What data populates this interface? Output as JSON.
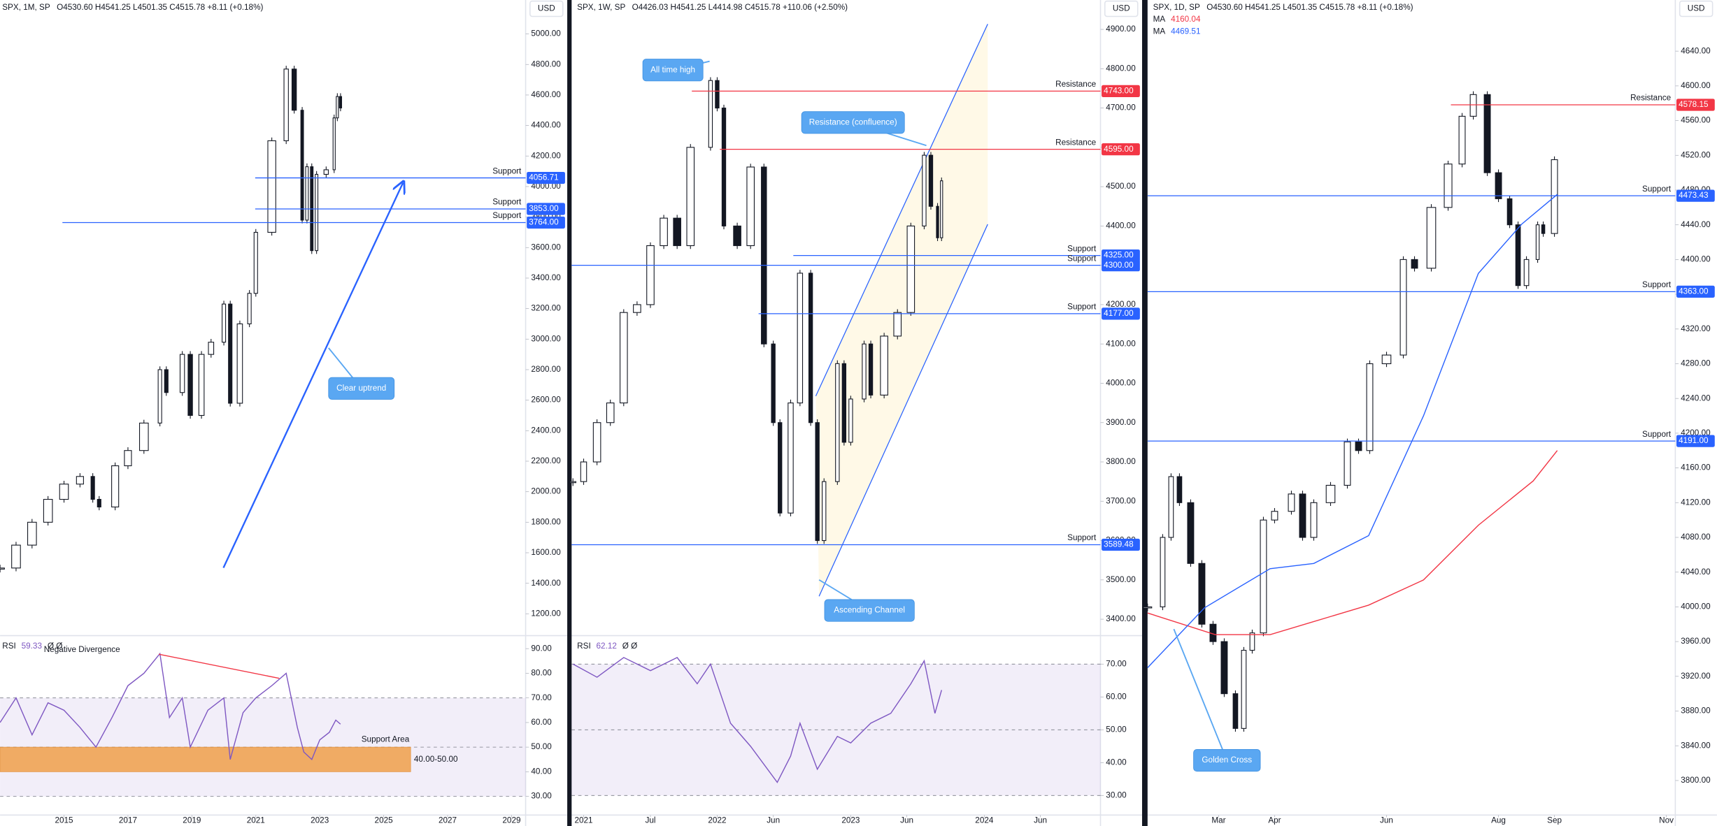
{
  "chart_data": [
    {
      "type": "candlestick",
      "symbol": "SPX, 1M, SP",
      "ohlc": "O4530.60 H4541.25 L4501.35 C4515.78 +8.11 (+0.18%)",
      "currency": "USD",
      "color": "#131722",
      "grid": false,
      "x": [
        2013.0,
        2013.5,
        2014.0,
        2014.5,
        2015.0,
        2015.5,
        2015.9,
        2016.1,
        2016.6,
        2017.0,
        2017.5,
        2018.0,
        2018.2,
        2018.7,
        2018.95,
        2019.3,
        2019.6,
        2020.0,
        2020.2,
        2020.5,
        2020.8,
        2021.0,
        2021.5,
        2021.95,
        2022.2,
        2022.45,
        2022.6,
        2022.75,
        2022.9,
        2023.2,
        2023.45,
        2023.55,
        2023.65
      ],
      "values": [
        1500,
        1650,
        1800,
        1950,
        2050,
        2100,
        1950,
        1900,
        2170,
        2270,
        2450,
        2800,
        2650,
        2900,
        2500,
        2900,
        2980,
        3230,
        2580,
        3100,
        3300,
        3700,
        4300,
        4770,
        4500,
        3780,
        4130,
        3580,
        4080,
        4110,
        4450,
        4590,
        4515
      ],
      "xlim": [
        2013,
        2029.44
      ],
      "xticks": [
        2015,
        2017,
        2019,
        2021,
        2023,
        2025,
        2027,
        2029
      ],
      "ylim": [
        1064,
        5115
      ],
      "yticks": [
        {
          "value": 1200,
          "label": "1200.00"
        },
        {
          "value": 1400,
          "label": "1400.00"
        },
        {
          "value": 1600,
          "label": "1600.00"
        },
        {
          "value": 1800,
          "label": "1800.00"
        },
        {
          "value": 2000,
          "label": "2000.00"
        },
        {
          "value": 2200,
          "label": "2200.00"
        },
        {
          "value": 2400,
          "label": "2400.00"
        },
        {
          "value": 2600,
          "label": "2600.00"
        },
        {
          "value": 2800,
          "label": "2800.00"
        },
        {
          "value": 3000,
          "label": "3000.00"
        },
        {
          "value": 3200,
          "label": "3200.00"
        },
        {
          "value": 3400,
          "label": "3400.00"
        },
        {
          "value": 3600,
          "label": "3600.00"
        },
        {
          "value": 3800,
          "label": "3800.00"
        },
        {
          "value": 4000,
          "label": "4000.00"
        },
        {
          "value": 4200,
          "label": "4200.00"
        },
        {
          "value": 4400,
          "label": "4400.00"
        },
        {
          "value": 4600,
          "label": "4600.00"
        },
        {
          "value": 4800,
          "label": "4800.00"
        },
        {
          "value": 5000,
          "label": "5000.00"
        }
      ],
      "levels": [
        {
          "label": "Support",
          "value": 4056.71,
          "value_label": "4056.71",
          "start": 2020.98,
          "color": "#2962ff"
        },
        {
          "label": "Support",
          "value": 3853,
          "value_label": "3853.00",
          "start": 2020.98,
          "color": "#2962ff"
        },
        {
          "label": "Support",
          "value": 3764,
          "value_label": "3764.00",
          "start": 2014.95,
          "color": "#2962ff"
        }
      ],
      "annotations": [
        "Clear uptrend"
      ],
      "rsi": {
        "label": "RSI",
        "value_label": "59.33",
        "status": "Ø Ø",
        "color": "#7e57c2",
        "x": [
          2013.0,
          2013.5,
          2014.0,
          2014.5,
          2015.0,
          2015.5,
          2016.0,
          2016.5,
          2017.0,
          2017.5,
          2018.0,
          2018.3,
          2018.7,
          2018.95,
          2019.5,
          2020.0,
          2020.2,
          2020.6,
          2021.0,
          2021.5,
          2021.95,
          2022.3,
          2022.5,
          2022.75,
          2023.0,
          2023.3,
          2023.5,
          2023.65
        ],
        "values": [
          60,
          70,
          55,
          68,
          65,
          58,
          50,
          62,
          75,
          80,
          88,
          62,
          70,
          50,
          65,
          70,
          45,
          64,
          70,
          75,
          80,
          58,
          48,
          45,
          53,
          56,
          61,
          59.33
        ],
        "ylim": [
          23.3,
          94.4
        ],
        "yticks": [
          {
            "value": 30,
            "label": "30.00"
          },
          {
            "value": 40,
            "label": "40.00"
          },
          {
            "value": 50,
            "label": "50.00"
          },
          {
            "value": 60,
            "label": "60.00"
          },
          {
            "value": 70,
            "label": "70.00"
          },
          {
            "value": 80,
            "label": "80.00"
          },
          {
            "value": 90,
            "label": "90.00"
          }
        ],
        "guides": [
          30,
          50,
          70
        ],
        "band": [
          30,
          70
        ],
        "annotations": [
          "Negative Divergence"
        ],
        "support_area": {
          "label": "Support Area",
          "range": [
            40,
            50
          ],
          "range_label": "40.00-50.00",
          "color": "#f0a04b"
        }
      }
    },
    {
      "type": "candlestick",
      "symbol": "SPX, 1W, SP",
      "ohlc": "O4426.03 H4541.25 L4414.98 C4515.78 +110.06 (+2.50%)",
      "currency": "USD",
      "color": "#131722",
      "grid": false,
      "x": [
        2020.92,
        2021.0,
        2021.1,
        2021.2,
        2021.3,
        2021.4,
        2021.5,
        2021.6,
        2021.7,
        2021.8,
        2021.95,
        2022.0,
        2022.05,
        2022.15,
        2022.25,
        2022.35,
        2022.42,
        2022.47,
        2022.55,
        2022.62,
        2022.7,
        2022.75,
        2022.8,
        2022.9,
        2022.95,
        2023.0,
        2023.1,
        2023.15,
        2023.25,
        2023.35,
        2023.45,
        2023.55,
        2023.6,
        2023.65,
        2023.68
      ],
      "values": [
        3750,
        3800,
        3900,
        3950,
        4180,
        4200,
        4350,
        4420,
        4350,
        4600,
        4770,
        4700,
        4400,
        4350,
        4550,
        4100,
        3900,
        3670,
        3950,
        4280,
        3900,
        3600,
        3750,
        4050,
        3850,
        3960,
        4100,
        3970,
        4120,
        4180,
        4400,
        4580,
        4450,
        4370,
        4515
      ],
      "xlim": [
        2020.91,
        2024.87
      ],
      "xticks": [
        {
          "value": 2021,
          "label": "2021"
        },
        {
          "value": 2021.5,
          "label": "Jul"
        },
        {
          "value": 2022,
          "label": "2022"
        },
        {
          "value": 2022.42,
          "label": "Jun"
        },
        {
          "value": 2023,
          "label": "2023"
        },
        {
          "value": 2023.42,
          "label": "Jun"
        },
        {
          "value": 2024,
          "label": "2024"
        },
        {
          "value": 2024.42,
          "label": "Jun"
        }
      ],
      "ylim": [
        3361,
        4933
      ],
      "yticks": [
        {
          "value": 3400,
          "label": "3400.00"
        },
        {
          "value": 3500,
          "label": "3500.00"
        },
        {
          "value": 3600,
          "label": "3600.00"
        },
        {
          "value": 3700,
          "label": "3700.00"
        },
        {
          "value": 3800,
          "label": "3800.00"
        },
        {
          "value": 3900,
          "label": "3900.00"
        },
        {
          "value": 4000,
          "label": "4000.00"
        },
        {
          "value": 4100,
          "label": "4100.00"
        },
        {
          "value": 4200,
          "label": "4200.00"
        },
        {
          "value": 4300,
          "label": "4300.00"
        },
        {
          "value": 4400,
          "label": "4400.00"
        },
        {
          "value": 4500,
          "label": "4500.00"
        },
        {
          "value": 4600,
          "label": "4600.00"
        },
        {
          "value": 4700,
          "label": "4700.00"
        },
        {
          "value": 4800,
          "label": "4800.00"
        },
        {
          "value": 4900,
          "label": "4900.00"
        }
      ],
      "levels": [
        {
          "label": "Resistance",
          "value": 4743,
          "value_label": "4743.00",
          "start": 2021.81,
          "color": "#f23645"
        },
        {
          "label": "Resistance",
          "value": 4595,
          "value_label": "4595.00",
          "start": 2022.02,
          "color": "#f23645"
        },
        {
          "label": "Support",
          "value": 4325,
          "value_label": "4325.00",
          "start": 2022.57,
          "color": "#2962ff"
        },
        {
          "label": "Support",
          "value": 4300,
          "value_label": "4300.00",
          "start": 2020.91,
          "color": "#2962ff"
        },
        {
          "label": "Support",
          "value": 4177,
          "value_label": "4177.00",
          "start": 2022.31,
          "color": "#2962ff"
        },
        {
          "label": "Support",
          "value": 3589.48,
          "value_label": "3589.48",
          "start": 2020.91,
          "color": "#2962ff"
        }
      ],
      "annotations": [
        "All time high",
        "Resistance (confluence)",
        "Ascending Channel"
      ],
      "rsi": {
        "label": "RSI",
        "value_label": "62.12",
        "status": "Ø Ø",
        "color": "#7e57c2",
        "x": [
          2020.92,
          2021.1,
          2021.3,
          2021.5,
          2021.7,
          2021.85,
          2021.95,
          2022.1,
          2022.25,
          2022.45,
          2022.55,
          2022.62,
          2022.75,
          2022.9,
          2023.0,
          2023.15,
          2023.3,
          2023.45,
          2023.55,
          2023.63,
          2023.68
        ],
        "values": [
          70,
          66,
          72,
          68,
          72,
          64,
          70,
          52,
          45,
          34,
          42,
          52,
          38,
          48,
          46,
          52,
          55,
          64,
          71,
          55,
          62.12
        ],
        "ylim": [
          24.7,
          78
        ],
        "yticks": [
          {
            "value": 30,
            "label": "30.00"
          },
          {
            "value": 40,
            "label": "40.00"
          },
          {
            "value": 50,
            "label": "50.00"
          },
          {
            "value": 60,
            "label": "60.00"
          },
          {
            "value": 70,
            "label": "70.00"
          }
        ],
        "guides": [
          30,
          50,
          70
        ],
        "band": [
          30,
          70
        ]
      }
    },
    {
      "type": "candlestick",
      "symbol": "SPX, 1D, SP",
      "ohlc": "O4530.60 H4541.25 L4501.35 C4515.78 +8.11 (+0.18%)",
      "currency": "USD",
      "color": "#131722",
      "grid": false,
      "x": [
        1.73,
        2.0,
        2.15,
        2.3,
        2.5,
        2.7,
        2.9,
        3.1,
        3.3,
        3.45,
        3.6,
        3.8,
        4.0,
        4.3,
        4.5,
        4.7,
        5.0,
        5.3,
        5.5,
        5.7,
        6.0,
        6.3,
        6.5,
        6.8,
        7.1,
        7.35,
        7.55,
        7.8,
        8.0,
        8.2,
        8.35,
        8.5,
        8.7,
        8.8,
        9.0
      ],
      "values": [
        4000,
        4080,
        4150,
        4120,
        4050,
        3980,
        3960,
        3900,
        3860,
        3950,
        3970,
        4100,
        4110,
        4130,
        4080,
        4120,
        4140,
        4190,
        4180,
        4280,
        4290,
        4400,
        4390,
        4460,
        4510,
        4565,
        4590,
        4500,
        4470,
        4440,
        4370,
        4400,
        4440,
        4430,
        4515
      ],
      "xlim": [
        1.73,
        11.16
      ],
      "xticks": [
        {
          "value": 3,
          "label": "Mar"
        },
        {
          "value": 4,
          "label": "Apr"
        },
        {
          "value": 6,
          "label": "Jun"
        },
        {
          "value": 8,
          "label": "Aug"
        },
        {
          "value": 9,
          "label": "Sep"
        },
        {
          "value": 11,
          "label": "Nov"
        }
      ],
      "ylim": [
        3764,
        4680
      ],
      "yticks": [
        {
          "value": 3800,
          "label": "3800.00"
        },
        {
          "value": 3840,
          "label": "3840.00"
        },
        {
          "value": 3880,
          "label": "3880.00"
        },
        {
          "value": 3920,
          "label": "3920.00"
        },
        {
          "value": 3960,
          "label": "3960.00"
        },
        {
          "value": 4000,
          "label": "4000.00"
        },
        {
          "value": 4040,
          "label": "4040.00"
        },
        {
          "value": 4080,
          "label": "4080.00"
        },
        {
          "value": 4120,
          "label": "4120.00"
        },
        {
          "value": 4160,
          "label": "4160.00"
        },
        {
          "value": 4200,
          "label": "4200.00"
        },
        {
          "value": 4240,
          "label": "4240.00"
        },
        {
          "value": 4280,
          "label": "4280.00"
        },
        {
          "value": 4320,
          "label": "4320.00"
        },
        {
          "value": 4360,
          "label": "4360.00"
        },
        {
          "value": 4400,
          "label": "4400.00"
        },
        {
          "value": 4440,
          "label": "4440.00"
        },
        {
          "value": 4480,
          "label": "4480.00"
        },
        {
          "value": 4520,
          "label": "4520.00"
        },
        {
          "value": 4560,
          "label": "4560.00"
        },
        {
          "value": 4600,
          "label": "4600.00"
        },
        {
          "value": 4640,
          "label": "4640.00"
        }
      ],
      "levels": [
        {
          "label": "Resistance",
          "value": 4578.15,
          "value_label": "4578.15",
          "start": 7.15,
          "color": "#f23645"
        },
        {
          "label": "Support",
          "value": 4473.43,
          "value_label": "4473.43",
          "start": 1.73,
          "color": "#2962ff"
        },
        {
          "label": "Support",
          "value": 4363,
          "value_label": "4363.00",
          "start": 1.73,
          "color": "#2962ff"
        },
        {
          "label": "Support",
          "value": 4191,
          "value_label": "4191.00",
          "start": 1.73,
          "color": "#2962ff"
        }
      ],
      "moving_averages": [
        {
          "name": "MA",
          "value_label": "4160.04",
          "color": "#f23645",
          "x": [
            1.73,
            2.94,
            3.92,
            5.68,
            6.66,
            7.64,
            8.62,
            9.05
          ],
          "values": [
            3993,
            3968,
            3968,
            4002,
            4031,
            4094,
            4145,
            4180
          ]
        },
        {
          "name": "MA",
          "value_label": "4469.51",
          "color": "#2962ff",
          "x": [
            1.73,
            2.75,
            3.92,
            4.7,
            5.68,
            6.66,
            7.64,
            8.42,
            9.05
          ],
          "values": [
            3930,
            3999,
            4044,
            4050,
            4082,
            4220,
            4384,
            4441,
            4475
          ]
        }
      ],
      "annotations": [
        "Golden Cross"
      ]
    }
  ]
}
